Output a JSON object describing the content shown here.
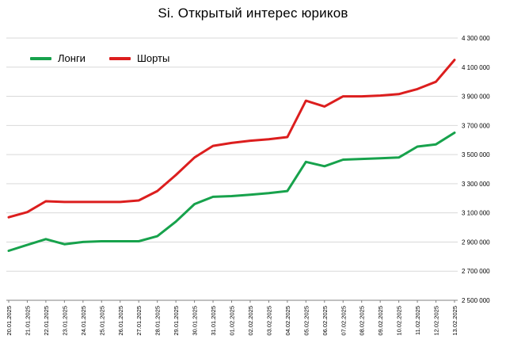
{
  "chart_data": {
    "type": "line",
    "title": "Si. Открытый интерес юриков",
    "legend_position": "top-left",
    "grid": "horizontal",
    "ylim": [
      2500000,
      4300000
    ],
    "y_step": 200000,
    "y_tick_labels": [
      "4 300 000",
      "4 100 000",
      "3 900 000",
      "3 700 000",
      "3 500 000",
      "3 300 000",
      "3 100 000",
      "2 900 000",
      "2 700 000",
      "2 500 000"
    ],
    "categories": [
      "20.01.2025",
      "21.01.2025",
      "22.01.2025",
      "23.01.2025",
      "24.01.2025",
      "25.01.2025",
      "26.01.2025",
      "27.01.2025",
      "28.01.2025",
      "29.01.2025",
      "30.01.2025",
      "31.01.2025",
      "01.02.2025",
      "02.02.2025",
      "03.02.2025",
      "04.02.2025",
      "05.02.2025",
      "06.02.2025",
      "07.02.2025",
      "08.02.2025",
      "09.02.2025",
      "10.02.2025",
      "11.02.2025",
      "12.02.2025",
      "13.02.2025"
    ],
    "series": [
      {
        "name": "Лонги",
        "color": "#17a24c",
        "values": [
          2840000,
          2880000,
          2920000,
          2885000,
          2900000,
          2905000,
          2905000,
          2905000,
          2940000,
          3040000,
          3160000,
          3210000,
          3215000,
          3225000,
          3235000,
          3250000,
          3450000,
          3420000,
          3465000,
          3470000,
          3475000,
          3480000,
          3555000,
          3570000,
          3650000
        ]
      },
      {
        "name": "Шорты",
        "color": "#dc1e1e",
        "values": [
          3070000,
          3105000,
          3180000,
          3175000,
          3175000,
          3175000,
          3175000,
          3185000,
          3250000,
          3360000,
          3480000,
          3560000,
          3580000,
          3595000,
          3605000,
          3620000,
          3870000,
          3830000,
          3900000,
          3900000,
          3905000,
          3915000,
          3950000,
          4000000,
          4150000
        ]
      }
    ],
    "colors": {
      "grid": "#d9d9d9",
      "axis": "#808080",
      "text": "#000000"
    }
  }
}
